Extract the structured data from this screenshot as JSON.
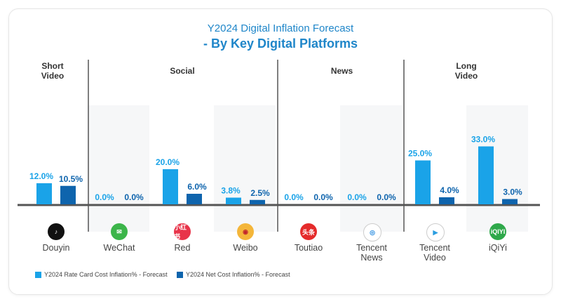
{
  "chart_data": {
    "type": "bar",
    "title": "Y2024 Digital Inflation Forecast",
    "subtitle": "- By Key Digital Platforms",
    "groups": [
      {
        "label": "Short Video",
        "categories": [
          "Douyin"
        ]
      },
      {
        "label": "Social",
        "categories": [
          "WeChat",
          "Red",
          "Weibo"
        ]
      },
      {
        "label": "News",
        "categories": [
          "Toutiao",
          "Tencent News"
        ]
      },
      {
        "label": "Long Video",
        "categories": [
          "Tencent Video",
          "iQiYi"
        ]
      }
    ],
    "categories": [
      "Douyin",
      "WeChat",
      "Red",
      "Weibo",
      "Toutiao",
      "Tencent News",
      "Tencent Video",
      "iQiYi"
    ],
    "series": [
      {
        "name": "Y2024 Rate Card Cost Inflation% - Forecast",
        "color": "#1aa3e8",
        "values": [
          12.0,
          0.0,
          20.0,
          3.8,
          0.0,
          0.0,
          25.0,
          33.0
        ],
        "labels": [
          "12.0%",
          "0.0%",
          "20.0%",
          "3.8%",
          "0.0%",
          "0.0%",
          "25.0%",
          "33.0%"
        ]
      },
      {
        "name": "Y2024 Net Cost Inflation% - Forecast",
        "color": "#0e64ad",
        "values": [
          10.5,
          0.0,
          6.0,
          2.5,
          0.0,
          0.0,
          4.0,
          3.0
        ],
        "labels": [
          "10.5%",
          "0.0%",
          "6.0%",
          "2.5%",
          "0.0%",
          "0.0%",
          "4.0%",
          "3.0%"
        ]
      }
    ],
    "legend": "bottom-left",
    "grid": false,
    "icons": [
      "douyin-logo",
      "wechat-logo",
      "red-logo",
      "weibo-logo",
      "toutiao-logo",
      "tencent-news-logo",
      "tencent-video-logo",
      "iqiyi-logo"
    ],
    "icon_text": {
      "red": "小红书",
      "toutiao": "头条",
      "iqiyi": "iQIYI"
    }
  }
}
